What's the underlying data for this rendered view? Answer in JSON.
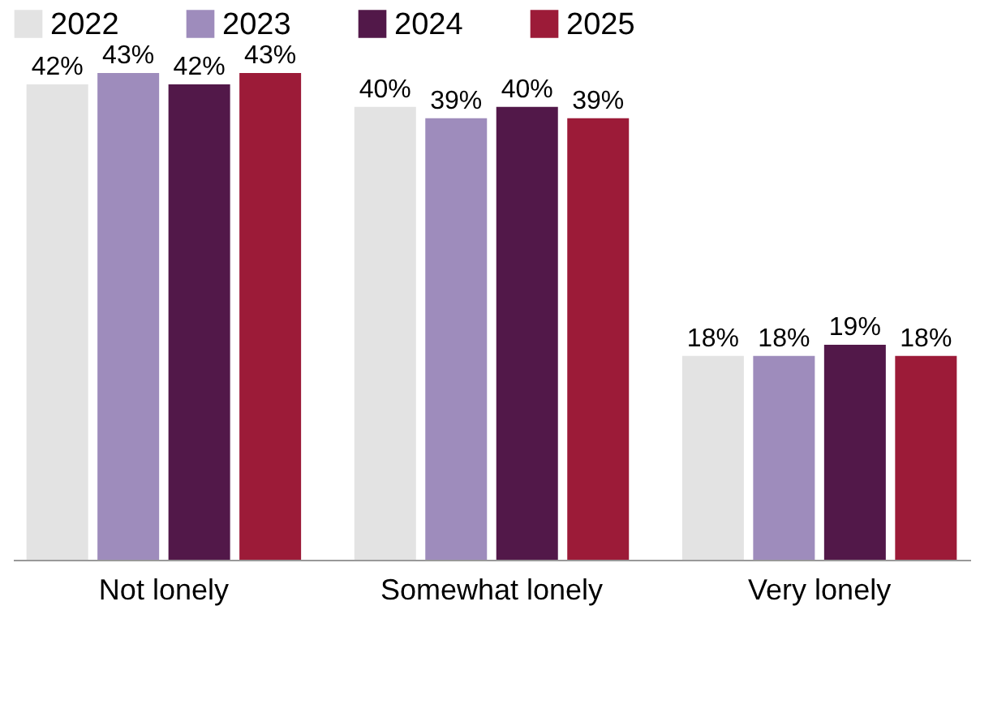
{
  "chart_data": {
    "type": "bar",
    "categories": [
      "Not lonely",
      "Somewhat lonely",
      "Very lonely"
    ],
    "legend": "top left",
    "grid": false,
    "series": [
      {
        "name": "2022",
        "color": "#e3e3e3",
        "values": [
          42,
          40,
          18
        ],
        "value_labels": [
          "42%",
          "40%",
          "18%"
        ]
      },
      {
        "name": "2023",
        "color": "#9e8cbc",
        "values": [
          43,
          39,
          18
        ],
        "value_labels": [
          "43%",
          "39%",
          "18%"
        ]
      },
      {
        "name": "2024",
        "color": "#521849",
        "values": [
          42,
          40,
          19
        ],
        "value_labels": [
          "42%",
          "40%",
          "19%"
        ]
      },
      {
        "name": "2025",
        "color": "#9c1b38",
        "values": [
          43,
          39,
          18
        ],
        "value_labels": [
          "43%",
          "39%",
          "18%"
        ]
      }
    ]
  }
}
